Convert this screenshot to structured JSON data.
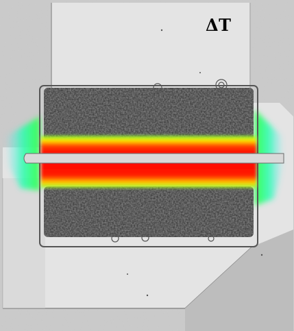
{
  "image": {
    "annotation_label": "ΔT",
    "colors": {
      "background": "#cfcfcf",
      "electrode": "#e6e6e6",
      "pad_dark": "#2e2e2e",
      "heat_hot": "#ff1a00",
      "heat_mid": "#ffe000",
      "heat_cool": "#19ff7a"
    },
    "heat_scale": [
      "cool",
      "warm",
      "hot"
    ]
  }
}
